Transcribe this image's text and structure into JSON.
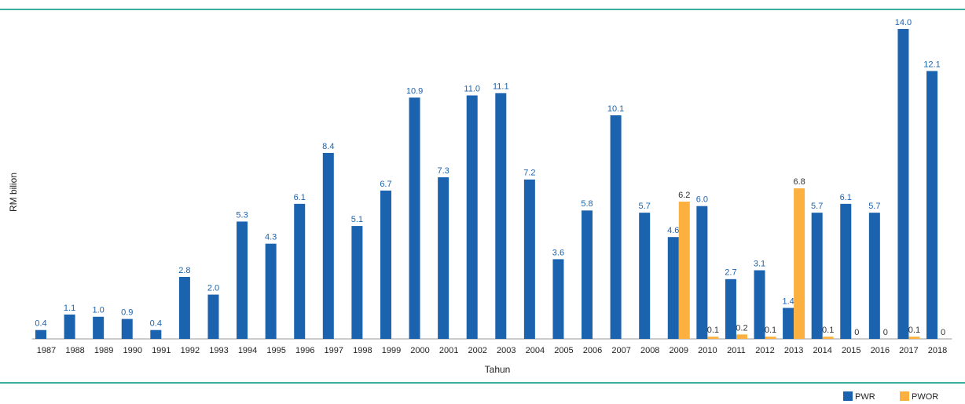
{
  "chart_data": {
    "type": "bar",
    "x_label": "Tahun",
    "y_label": "RM bilion",
    "categories": [
      "1987",
      "1988",
      "1989",
      "1990",
      "1991",
      "1992",
      "1993",
      "1994",
      "1995",
      "1996",
      "1997",
      "1998",
      "1999",
      "2000",
      "2001",
      "2002",
      "2003",
      "2004",
      "2005",
      "2006",
      "2007",
      "2008",
      "2009",
      "2010",
      "2011",
      "2012",
      "2013",
      "2014",
      "2015",
      "2016",
      "2017",
      "2018"
    ],
    "series": [
      {
        "name": "PWR",
        "color": "#1b63ae",
        "values": [
          0.4,
          1.1,
          1.0,
          0.9,
          0.4,
          2.8,
          2.0,
          5.3,
          4.3,
          6.1,
          8.4,
          5.1,
          6.7,
          10.9,
          7.3,
          11.0,
          11.1,
          7.2,
          3.6,
          5.8,
          10.1,
          5.7,
          4.6,
          6.0,
          2.7,
          3.1,
          1.4,
          5.7,
          6.1,
          5.7,
          14.0,
          12.1
        ],
        "value_labels": [
          "0.4",
          "1.1",
          "1.0",
          "0.9",
          "0.4",
          "2.8",
          "2.0",
          "5.3",
          "4.3",
          "6.1",
          "8.4",
          "5.1",
          "6.7",
          "10.9",
          "7.3",
          "11.0",
          "11.1",
          "7.2",
          "3.6",
          "5.8",
          "10.1",
          "5.7",
          "4.6",
          "6.0",
          "2.7",
          "3.1",
          "1.4",
          "5.7",
          "6.1",
          "5.7",
          "14.0",
          "12.1"
        ]
      },
      {
        "name": "PWOR",
        "color": "#fbb040",
        "values": [
          null,
          null,
          null,
          null,
          null,
          null,
          null,
          null,
          null,
          null,
          null,
          null,
          null,
          null,
          null,
          null,
          null,
          null,
          null,
          null,
          null,
          null,
          6.2,
          0.1,
          0.2,
          0.1,
          6.8,
          0.1,
          0,
          0,
          0.1,
          0
        ],
        "value_labels": [
          null,
          null,
          null,
          null,
          null,
          null,
          null,
          null,
          null,
          null,
          null,
          null,
          null,
          null,
          null,
          null,
          null,
          null,
          null,
          null,
          null,
          null,
          "6.2",
          "0.1",
          "0.2",
          "0.1",
          "6.8",
          "0.1",
          "0",
          "0",
          "0.1",
          "0"
        ]
      }
    ],
    "ylim": [
      0,
      14.6
    ],
    "legend": "bottom-right"
  }
}
